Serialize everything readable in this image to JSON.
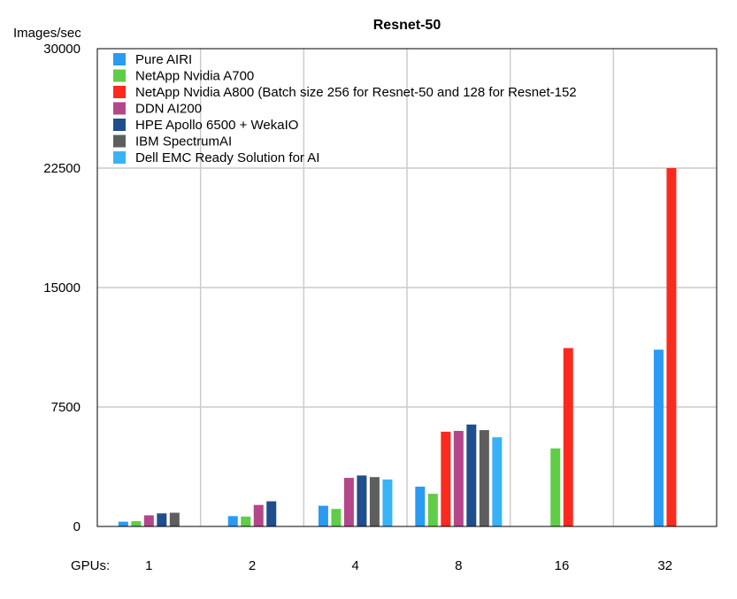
{
  "chart_data": {
    "type": "bar",
    "title": "Resnet-50",
    "ylabel": "Images/sec",
    "xlabel": "GPUs:",
    "ylim": [
      0,
      30000
    ],
    "yticks": [
      "0",
      "7500",
      "15000",
      "22500",
      "30000"
    ],
    "grid": true,
    "legend_placement": "top-left",
    "categories": [
      "1",
      "2",
      "4",
      "8",
      "16",
      "32"
    ],
    "series": [
      {
        "name": "Pure AIRI",
        "color": "#2b9af3",
        "values": [
          300,
          650,
          1300,
          2500,
          null,
          11100
        ]
      },
      {
        "name": "NetApp Nvidia A700",
        "color": "#5fcd46",
        "values": [
          330,
          620,
          1100,
          2050,
          4900,
          null
        ]
      },
      {
        "name": "NetApp Nvidia A800 (Batch size 256 for Resnet-50 and 128 for Resnet-152",
        "color": "#fb2a1e",
        "values": [
          null,
          null,
          null,
          5950,
          11200,
          22500
        ]
      },
      {
        "name": "DDN AI200",
        "color": "#b4478a",
        "values": [
          700,
          1350,
          3050,
          6000,
          null,
          null
        ]
      },
      {
        "name": "HPE Apollo 6500 + WekaIO",
        "color": "#1f4e8c",
        "values": [
          820,
          1580,
          3200,
          6400,
          null,
          null
        ]
      },
      {
        "name": "IBM SpectrumAI",
        "color": "#5e5e5e",
        "values": [
          860,
          null,
          3100,
          6050,
          null,
          null
        ]
      },
      {
        "name": "Dell EMC Ready Solution for AI",
        "color": "#39b2f7",
        "values": [
          null,
          null,
          2950,
          5600,
          null,
          null
        ]
      }
    ]
  }
}
